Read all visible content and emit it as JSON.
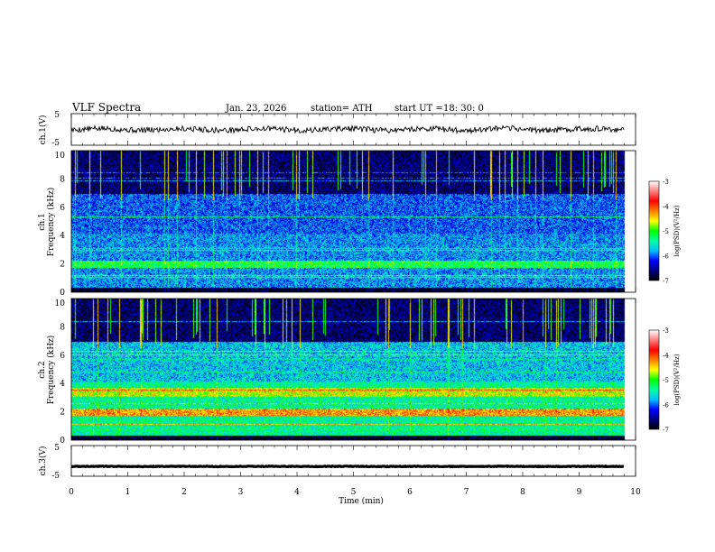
{
  "chart_data": {
    "type": "heatmap",
    "title": "VLF Spectra",
    "date": "Jan. 23, 2026",
    "station_label": "station= ATH",
    "start_label": "start UT =",
    "start_time": "18: 30: 0",
    "xlabel": "Time (min)",
    "x_ticks": [
      "0",
      "1",
      "2",
      "3",
      "4",
      "5",
      "6",
      "7",
      "8",
      "9",
      "10"
    ],
    "xlim": [
      0,
      10
    ],
    "data_end_min": 9.8,
    "panels": [
      {
        "name": "ch1-waveform",
        "type": "line",
        "ylabel": "ch.1(V)",
        "y_ticks": [
          "5",
          "-5"
        ],
        "ylim": [
          -5,
          5
        ],
        "level": 0,
        "noise": 0.45
      },
      {
        "name": "ch1-spectrogram",
        "type": "heatmap",
        "ylabel_top": "ch.1",
        "ylabel": "Frequency (kHz)",
        "y_ticks": [
          "0",
          "2",
          "4",
          "6",
          "8",
          "10"
        ],
        "ylim": [
          0,
          10
        ],
        "seed": 7,
        "dark_band_khz": [
          7,
          10
        ],
        "hot_band_khz": 2.0
      },
      {
        "name": "ch2-spectrogram",
        "type": "heatmap",
        "ylabel_top": "ch.2",
        "ylabel": "Frequency (kHz)",
        "y_ticks": [
          "0",
          "2",
          "4",
          "6",
          "8",
          "10"
        ],
        "ylim": [
          0,
          10
        ],
        "seed": 13,
        "dark_band_khz": [
          7,
          10
        ],
        "hot_band_khz": 2.0
      },
      {
        "name": "ch3-waveform",
        "type": "line",
        "ylabel": "ch.3(V)",
        "y_ticks": [
          "5",
          "-5"
        ],
        "ylim": [
          -5,
          5
        ],
        "level": -1.8,
        "noise": 0.05
      }
    ],
    "colorbar": {
      "label": "log(PSD)(V²/Hz)",
      "ticks": [
        "-3",
        "-4",
        "-5",
        "-6",
        "-7"
      ],
      "range": [
        -7,
        -3
      ],
      "colors": [
        "#000000",
        "#00007f",
        "#0000ff",
        "#00bfff",
        "#00ffa0",
        "#00ff00",
        "#ffff00",
        "#ff8000",
        "#ff0000",
        "#ff7f7f",
        "#ffffff"
      ]
    }
  }
}
